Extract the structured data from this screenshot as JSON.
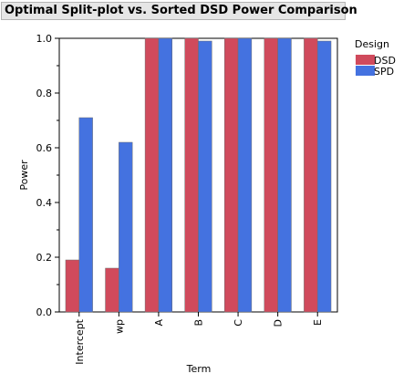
{
  "chart_data": {
    "type": "bar",
    "title": "Optimal Split-plot vs. Sorted DSD Power Comparison",
    "xlabel": "Term",
    "ylabel": "Power",
    "ylim": [
      0,
      1
    ],
    "yticks": [
      "0.0",
      "0.2",
      "0.4",
      "0.6",
      "0.8",
      "1.0"
    ],
    "categories": [
      "Intercept",
      "wp",
      "A",
      "B",
      "C",
      "D",
      "E"
    ],
    "legend_title": "Design",
    "legend_position": "right",
    "series": [
      {
        "name": "DSD",
        "color": "#d04a5c",
        "values": [
          0.19,
          0.16,
          1.0,
          1.0,
          1.0,
          1.0,
          1.0
        ]
      },
      {
        "name": "SPD",
        "color": "#4472e0",
        "values": [
          0.71,
          0.62,
          1.0,
          0.99,
          1.0,
          1.0,
          0.99
        ]
      }
    ]
  }
}
